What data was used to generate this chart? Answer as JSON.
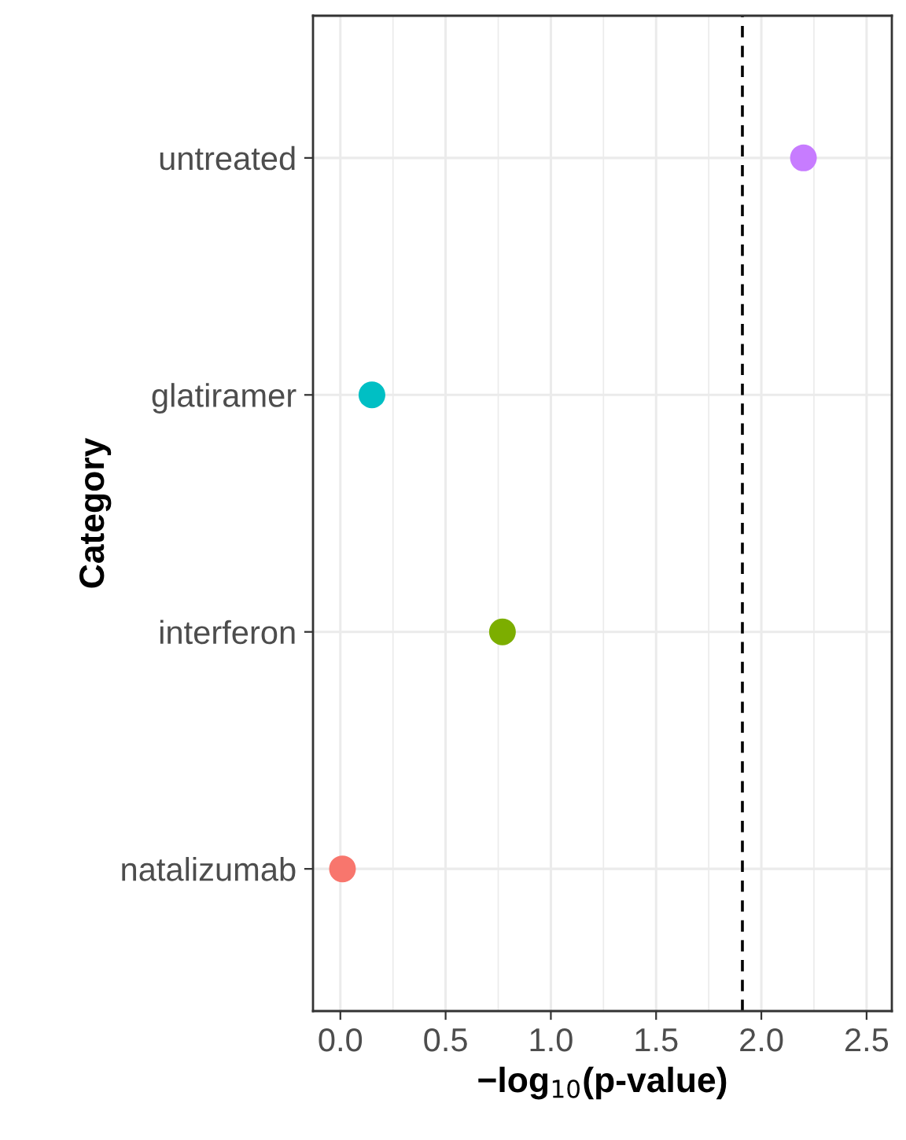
{
  "chart_data": {
    "type": "scatter",
    "orientation": "horizontal",
    "xlabel": "−log$_{10}$(p-value)",
    "ylabel": "Category",
    "categories": [
      "untreated",
      "glatiramer",
      "interferon",
      "natalizumab"
    ],
    "values": [
      2.2,
      0.15,
      0.77,
      0.01
    ],
    "colors": [
      "#c77cff",
      "#00bfc4",
      "#7cae00",
      "#f8766d"
    ],
    "xlim": [
      -0.13,
      2.62
    ],
    "xticks": [
      {
        "value": 0,
        "label": "0.0"
      },
      0.5,
      {
        "value": 1,
        "label": "1.0"
      },
      1.5,
      {
        "value": 2,
        "label": "2.0"
      },
      2.5
    ],
    "ref_lines": [
      {
        "axis": "x",
        "value": 1.91,
        "label": null,
        "color": "#000000",
        "line_style": "dashed"
      }
    ],
    "grid": true,
    "marker": "circle"
  }
}
